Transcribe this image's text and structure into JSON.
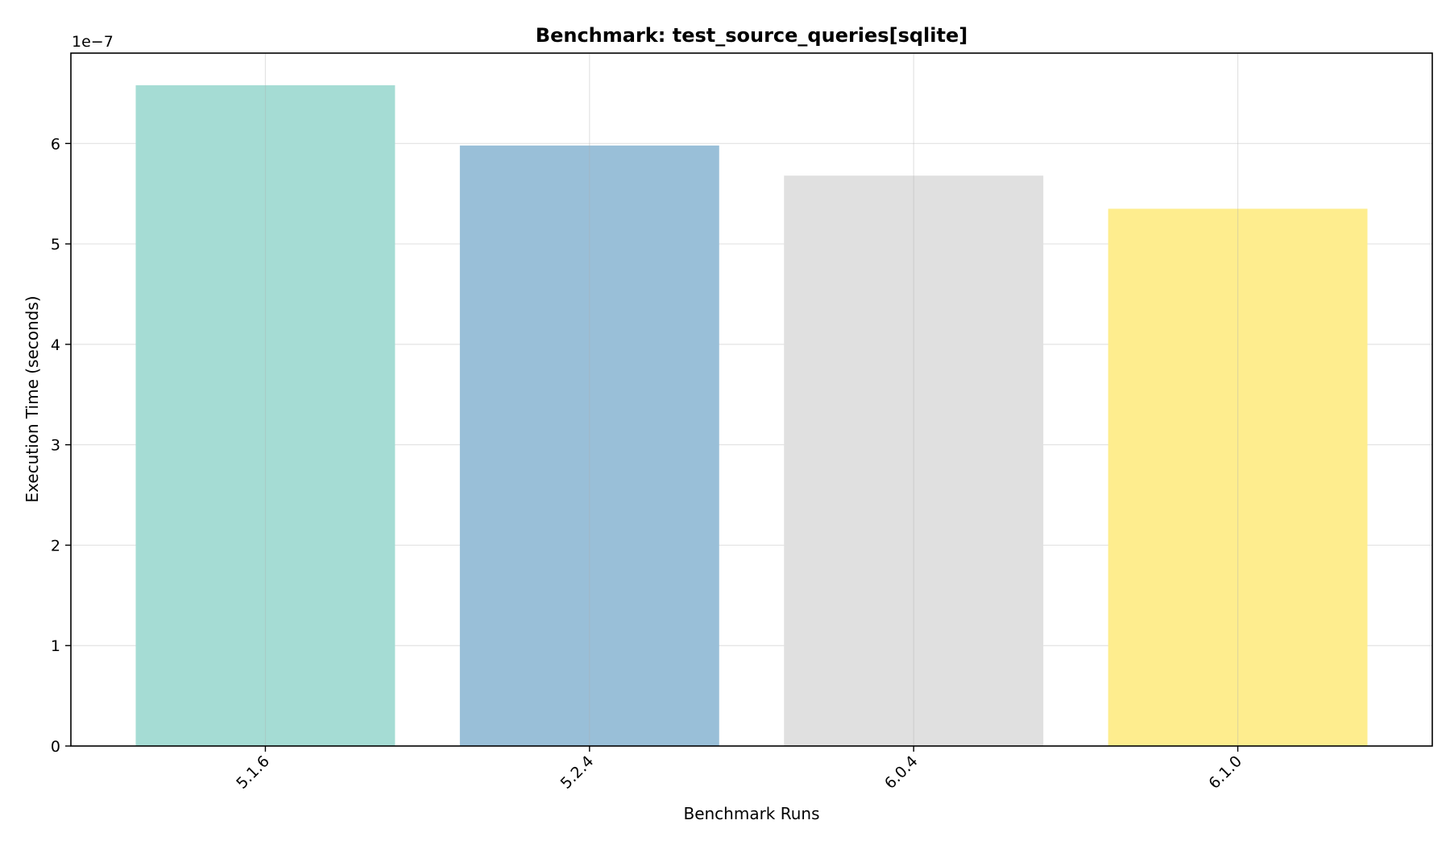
{
  "chart_data": {
    "type": "bar",
    "title": "Benchmark: test_source_queries[sqlite]",
    "xlabel": "Benchmark Runs",
    "ylabel": "Execution Time (seconds)",
    "y_offset_label": "1e−7",
    "y_scale_factor": 1e-07,
    "categories": [
      "5.1.6",
      "5.2.4",
      "6.0.4",
      "6.1.0"
    ],
    "values": [
      6.58e-07,
      5.98e-07,
      5.68e-07,
      5.35e-07
    ],
    "bar_colors": [
      "#a5dcd4",
      "#99bfd8",
      "#e0e0e0",
      "#feed8e"
    ],
    "ylim": [
      0,
      6.9e-07
    ],
    "yticks": [
      0,
      1e-07,
      2e-07,
      3e-07,
      4e-07,
      5e-07,
      6e-07
    ],
    "ytick_labels": [
      "0",
      "1",
      "2",
      "3",
      "4",
      "5",
      "6"
    ],
    "grid": true,
    "legend": false,
    "xtick_rotation": "45"
  }
}
